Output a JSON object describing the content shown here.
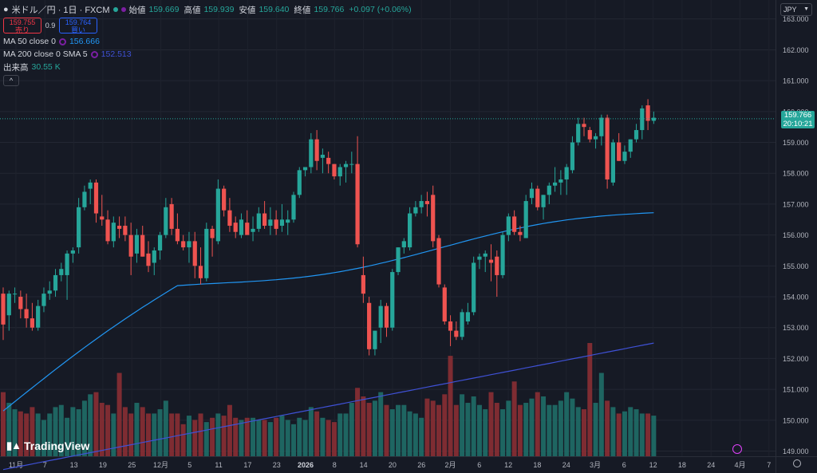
{
  "symbol": {
    "title": "米ドル／円 · 1日 · FXCM"
  },
  "ohlc": {
    "open_label": "始値",
    "open": "159.669",
    "high_label": "高値",
    "high": "159.939",
    "low_label": "安値",
    "low": "159.640",
    "close_label": "終値",
    "close": "159.766",
    "change": "+0.097 (+0.06%)"
  },
  "trade": {
    "sell_price": "159.755",
    "sell_label": "売り",
    "spread": "0.9",
    "buy_price": "159.764",
    "buy_label": "買い"
  },
  "indicators": {
    "ma50_label": "MA 50 close 0",
    "ma50_value": "156.666",
    "ma200_label": "MA 200 close 0 SMA 5",
    "ma200_value": "152.513",
    "volume_label": "出来高",
    "volume_value": "30.55 K"
  },
  "currency": "JPY",
  "last_price": {
    "value": "159.766",
    "countdown": "20:10:21"
  },
  "brand": "TradingView",
  "colors": {
    "up": "#26a69a",
    "down": "#ef5350",
    "ma50": "#2196f3",
    "ma200": "#3f51d6",
    "bg": "#161a25"
  },
  "chart_data": {
    "type": "candlestick",
    "y_ticks": [
      "149.000",
      "150.000",
      "151.000",
      "152.000",
      "153.000",
      "154.000",
      "155.000",
      "156.000",
      "157.000",
      "158.000",
      "159.000",
      "160.000",
      "161.000",
      "162.000",
      "163.000"
    ],
    "x_ticks": [
      "11月",
      "7",
      "13",
      "19",
      "25",
      "12月",
      "5",
      "11",
      "17",
      "23",
      "2026",
      "8",
      "14",
      "20",
      "26",
      "2月",
      "6",
      "12",
      "18",
      "24",
      "3月",
      "6",
      "12",
      "18",
      "24",
      "4月",
      "7"
    ],
    "ylim": [
      148.6,
      163.2
    ],
    "series": [
      {
        "name": "USDJPY",
        "ohlc": [
          [
            154.1,
            154.3,
            152.6,
            153.1
          ],
          [
            153.4,
            154.2,
            152.9,
            154.1
          ],
          [
            154.1,
            154.3,
            153.8,
            154.1
          ],
          [
            154.0,
            154.2,
            153.3,
            153.6
          ],
          [
            153.6,
            154.1,
            153.0,
            153.3
          ],
          [
            153.3,
            153.8,
            152.9,
            153.0
          ],
          [
            153.0,
            153.9,
            152.9,
            153.7
          ],
          [
            153.7,
            154.3,
            153.5,
            154.1
          ],
          [
            154.1,
            154.5,
            153.9,
            154.2
          ],
          [
            154.2,
            154.9,
            154.0,
            154.7
          ],
          [
            154.7,
            155.1,
            154.5,
            154.9
          ],
          [
            154.7,
            155.5,
            153.9,
            155.4
          ],
          [
            155.4,
            155.6,
            155.1,
            155.5
          ],
          [
            155.6,
            157.2,
            155.4,
            156.9
          ],
          [
            156.9,
            157.6,
            156.8,
            157.4
          ],
          [
            157.5,
            157.8,
            157.0,
            157.7
          ],
          [
            157.7,
            157.8,
            156.4,
            156.7
          ],
          [
            156.6,
            157.3,
            156.3,
            156.5
          ],
          [
            156.5,
            156.8,
            155.7,
            155.8
          ],
          [
            155.8,
            156.6,
            155.6,
            156.4
          ],
          [
            156.3,
            156.6,
            155.9,
            156.2
          ],
          [
            156.3,
            156.6,
            155.8,
            156.0
          ],
          [
            156.0,
            156.4,
            154.7,
            155.3
          ],
          [
            155.4,
            156.2,
            155.1,
            156.0
          ],
          [
            156.0,
            156.3,
            155.3,
            155.3
          ],
          [
            155.4,
            155.8,
            154.8,
            155.0
          ],
          [
            155.1,
            155.6,
            154.7,
            155.5
          ],
          [
            155.5,
            156.1,
            155.2,
            156.0
          ],
          [
            156.0,
            157.2,
            155.9,
            156.9
          ],
          [
            157.0,
            157.2,
            156.0,
            156.2
          ],
          [
            156.2,
            156.7,
            155.7,
            155.8
          ],
          [
            155.8,
            156.0,
            155.5,
            155.6
          ],
          [
            155.6,
            156.1,
            155.1,
            155.8
          ],
          [
            155.8,
            156.1,
            154.6,
            155.0
          ],
          [
            155.0,
            155.6,
            154.4,
            154.6
          ],
          [
            154.6,
            156.4,
            154.5,
            156.2
          ],
          [
            156.2,
            156.3,
            155.3,
            155.9
          ],
          [
            155.8,
            157.8,
            155.7,
            157.5
          ],
          [
            157.5,
            157.6,
            156.6,
            156.8
          ],
          [
            156.8,
            157.2,
            156.1,
            156.3
          ],
          [
            156.4,
            156.6,
            155.9,
            156.1
          ],
          [
            156.0,
            156.7,
            155.9,
            156.5
          ],
          [
            156.4,
            156.8,
            156.1,
            156.0
          ],
          [
            156.1,
            156.6,
            155.8,
            156.2
          ],
          [
            156.2,
            156.9,
            156.1,
            156.7
          ],
          [
            156.7,
            157.1,
            156.2,
            156.3
          ],
          [
            156.3,
            156.9,
            156.0,
            156.5
          ],
          [
            156.5,
            156.8,
            156.0,
            156.2
          ],
          [
            156.3,
            157.0,
            156.1,
            156.5
          ],
          [
            156.4,
            156.8,
            156.0,
            156.5
          ],
          [
            156.5,
            157.4,
            156.4,
            157.3
          ],
          [
            157.3,
            158.2,
            157.2,
            158.1
          ],
          [
            158.1,
            158.2,
            157.9,
            158.2
          ],
          [
            158.2,
            159.3,
            158.0,
            159.1
          ],
          [
            159.1,
            159.4,
            158.1,
            158.4
          ],
          [
            158.5,
            158.8,
            158.0,
            158.6
          ],
          [
            158.5,
            158.7,
            158.0,
            158.3
          ],
          [
            158.3,
            158.3,
            157.8,
            157.9
          ],
          [
            157.9,
            158.3,
            157.6,
            158.2
          ],
          [
            158.2,
            158.4,
            157.7,
            158.3
          ],
          [
            158.3,
            158.7,
            158.0,
            158.3
          ],
          [
            158.3,
            159.2,
            155.6,
            155.7
          ],
          [
            154.7,
            155.3,
            153.8,
            154.1
          ],
          [
            153.8,
            154.0,
            152.1,
            152.3
          ],
          [
            152.3,
            152.9,
            152.1,
            152.9
          ],
          [
            153.0,
            153.9,
            152.5,
            153.7
          ],
          [
            153.7,
            153.8,
            152.7,
            153.0
          ],
          [
            153.0,
            154.9,
            152.9,
            154.8
          ],
          [
            154.8,
            155.6,
            154.7,
            155.6
          ],
          [
            155.6,
            155.9,
            155.4,
            155.8
          ],
          [
            155.6,
            156.9,
            155.5,
            156.7
          ],
          [
            156.7,
            157.1,
            156.6,
            156.9
          ],
          [
            156.9,
            157.3,
            156.7,
            157.1
          ],
          [
            157.1,
            157.4,
            156.6,
            157.0
          ],
          [
            157.3,
            157.6,
            155.6,
            155.8
          ],
          [
            155.9,
            156.0,
            154.3,
            154.4
          ],
          [
            154.3,
            154.4,
            153.1,
            153.2
          ],
          [
            153.2,
            153.4,
            152.4,
            152.9
          ],
          [
            152.9,
            153.2,
            152.6,
            152.7
          ],
          [
            152.7,
            153.6,
            152.6,
            153.5
          ],
          [
            153.2,
            153.8,
            153.1,
            153.5
          ],
          [
            153.5,
            155.3,
            153.4,
            155.1
          ],
          [
            155.2,
            155.4,
            154.9,
            155.3
          ],
          [
            155.3,
            155.5,
            154.8,
            155.4
          ],
          [
            155.2,
            155.7,
            154.5,
            155.1
          ],
          [
            155.3,
            155.5,
            154.0,
            154.7
          ],
          [
            154.7,
            156.1,
            154.6,
            156.0
          ],
          [
            156.0,
            156.7,
            155.8,
            156.6
          ],
          [
            156.6,
            156.8,
            156.0,
            156.1
          ],
          [
            156.1,
            156.3,
            155.8,
            156.0
          ],
          [
            155.9,
            157.3,
            155.9,
            157.1
          ],
          [
            157.2,
            157.7,
            157.0,
            157.5
          ],
          [
            157.5,
            157.6,
            156.8,
            156.9
          ],
          [
            156.9,
            157.3,
            156.5,
            157.3
          ],
          [
            157.3,
            157.7,
            157.0,
            157.6
          ],
          [
            157.6,
            158.2,
            157.4,
            157.7
          ],
          [
            157.7,
            158.1,
            157.3,
            157.8
          ],
          [
            157.8,
            158.3,
            157.3,
            158.2
          ],
          [
            158.1,
            159.2,
            158.0,
            159.0
          ],
          [
            159.0,
            159.8,
            158.9,
            159.6
          ],
          [
            159.6,
            159.8,
            159.2,
            159.5
          ],
          [
            159.4,
            159.5,
            159.0,
            159.1
          ],
          [
            159.1,
            159.3,
            158.8,
            159.2
          ],
          [
            159.2,
            159.9,
            158.9,
            159.8
          ],
          [
            159.8,
            159.9,
            157.5,
            157.8
          ],
          [
            157.7,
            159.1,
            157.6,
            159.0
          ],
          [
            159.0,
            159.3,
            158.4,
            158.4
          ],
          [
            158.4,
            158.9,
            158.3,
            158.7
          ],
          [
            158.7,
            159.1,
            158.5,
            159.1
          ],
          [
            159.1,
            159.6,
            159.0,
            159.4
          ],
          [
            159.4,
            160.2,
            159.1,
            160.1
          ],
          [
            160.2,
            160.4,
            159.4,
            159.7
          ],
          [
            159.7,
            160.0,
            159.6,
            159.8
          ]
        ]
      },
      {
        "name": "出来高",
        "values": [
          26,
          23,
          19,
          17,
          17,
          17,
          17,
          18,
          18,
          18,
          20,
          20,
          21,
          21,
          21,
          22,
          22,
          22,
          23,
          23,
          20,
          21,
          20,
          21,
          20,
          19,
          20,
          20,
          22,
          20,
          20,
          17,
          17,
          16,
          16,
          17,
          17,
          18,
          19,
          19,
          16,
          16,
          16,
          16,
          16,
          17,
          17,
          17,
          16,
          17,
          15,
          16,
          16,
          16,
          15,
          17,
          17,
          17,
          18,
          20,
          19,
          22,
          23,
          24,
          25,
          25,
          20,
          20,
          20,
          19,
          19,
          18,
          17,
          18,
          19,
          20,
          22,
          23,
          25,
          24,
          25,
          25,
          26,
          26,
          27,
          29,
          25,
          27,
          27,
          26,
          25,
          27,
          28,
          26,
          23,
          23,
          24,
          25,
          25,
          26,
          27,
          30,
          25,
          26,
          23,
          22,
          20,
          21,
          22,
          20,
          21,
          20,
          20
        ],
        "raw": [
          30,
          25,
          22,
          21,
          20,
          23,
          20,
          17,
          20,
          23,
          24,
          18,
          23,
          22,
          26,
          29,
          30,
          25,
          24,
          20,
          39,
          23,
          20,
          25,
          23,
          20,
          20,
          22,
          26,
          20,
          20,
          15,
          19,
          17,
          20,
          16,
          18,
          20,
          19,
          24,
          18,
          17,
          18,
          18,
          17,
          17,
          16,
          18,
          19,
          17,
          15,
          18,
          17,
          23,
          21,
          18,
          17,
          16,
          20,
          20,
          25,
          32,
          28,
          25,
          26,
          30,
          24,
          22,
          24,
          24,
          21,
          20,
          18,
          27,
          26,
          24,
          29,
          47,
          24,
          29,
          25,
          28,
          24,
          22,
          30,
          25,
          22,
          26,
          35,
          24,
          25,
          27,
          30,
          28,
          24,
          24,
          26,
          30,
          27,
          23,
          22,
          53,
          25,
          39,
          26,
          23,
          20,
          21,
          23,
          22,
          20,
          20,
          19
        ],
        "up_down": "per-candle"
      },
      {
        "name": "MA 50",
        "values": []
      },
      {
        "name": "MA 200",
        "values": []
      }
    ]
  }
}
